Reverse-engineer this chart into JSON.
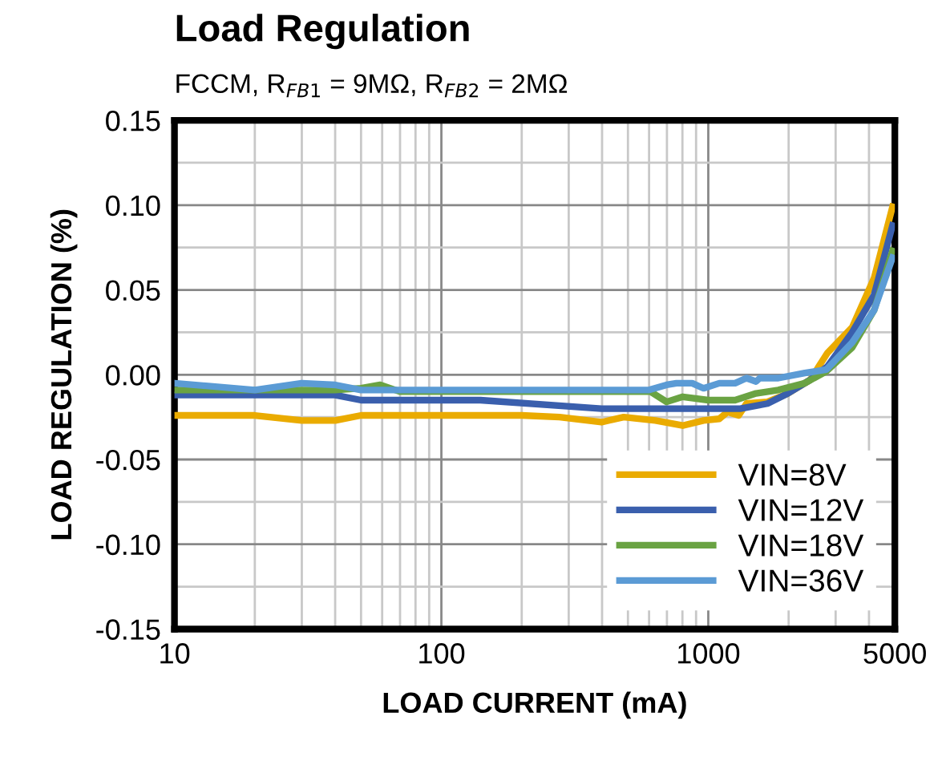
{
  "chart_data": {
    "type": "line",
    "title": "Load Regulation",
    "subtitle": "FCCM, R$_{FB1}$ = 9MΩ, R$_{FB2}$ = 2MΩ",
    "xlabel": "LOAD CURRENT (mA)",
    "ylabel": "LOAD REGULATION (%)",
    "log": "x",
    "xlim": [
      10,
      5000
    ],
    "xticks": [
      10,
      100,
      1000,
      5000
    ],
    "ylim": [
      -0.15,
      0.15
    ],
    "yticks": [
      {
        "value": -0.15,
        "label": "-0.15"
      },
      {
        "value": -0.1,
        "label": "-0.10"
      },
      {
        "value": -0.05,
        "label": "-0.05"
      },
      {
        "value": 0,
        "label": "0.00"
      },
      {
        "value": 0.05,
        "label": "0.05"
      },
      {
        "value": 0.1,
        "label": "0.10"
      },
      {
        "value": 0.15,
        "label": "0.15"
      }
    ],
    "grid": true,
    "legend": "bottom right",
    "line_style": "solid",
    "series": [
      {
        "name": "VIN=8V",
        "color": "#eaab00",
        "x": [
          10,
          20,
          30,
          40,
          50,
          100,
          200,
          277,
          398,
          482,
          634,
          802,
          959,
          1100,
          1180,
          1300,
          1390,
          1667,
          1990,
          2410,
          2800,
          3460,
          4180,
          4900
        ],
        "values": [
          -0.024,
          -0.024,
          -0.027,
          -0.027,
          -0.024,
          -0.024,
          -0.024,
          -0.025,
          -0.028,
          -0.025,
          -0.027,
          -0.03,
          -0.027,
          -0.026,
          -0.022,
          -0.024,
          -0.017,
          -0.016,
          -0.011,
          -0.003,
          0.013,
          0.028,
          0.057,
          0.099
        ]
      },
      {
        "name": "VIN=12V",
        "color": "#3a5fad",
        "x": [
          10,
          40,
          50,
          140,
          398,
          1318,
          1667,
          1990,
          2410,
          2800,
          3460,
          4180,
          4900
        ],
        "values": [
          -0.012,
          -0.012,
          -0.015,
          -0.015,
          -0.02,
          -0.02,
          -0.017,
          -0.011,
          -0.003,
          0.005,
          0.025,
          0.047,
          0.088
        ]
      },
      {
        "name": "VIN=18V",
        "color": "#6aa343",
        "x": [
          10,
          40,
          50,
          59,
          70,
          608,
          698,
          802,
          1000,
          1260,
          1510,
          1830,
          2300,
          2770,
          3460,
          4180,
          4900
        ],
        "values": [
          -0.009,
          -0.009,
          -0.008,
          -0.006,
          -0.01,
          -0.01,
          -0.016,
          -0.013,
          -0.015,
          -0.015,
          -0.011,
          -0.009,
          -0.005,
          0.002,
          0.016,
          0.038,
          0.073
        ]
      },
      {
        "name": "VIN=36V",
        "color": "#5b9bd5",
        "x": [
          10,
          20,
          30,
          40,
          50,
          600,
          698,
          760,
          870,
          960,
          1100,
          1260,
          1390,
          1510,
          1560,
          1830,
          2300,
          2770,
          3460,
          4180,
          4900
        ],
        "values": [
          -0.005,
          -0.009,
          -0.005,
          -0.006,
          -0.009,
          -0.009,
          -0.006,
          -0.005,
          -0.005,
          -0.008,
          -0.005,
          -0.005,
          -0.002,
          -0.004,
          -0.002,
          -0.002,
          0.001,
          0.003,
          0.019,
          0.038,
          0.069
        ]
      }
    ]
  }
}
